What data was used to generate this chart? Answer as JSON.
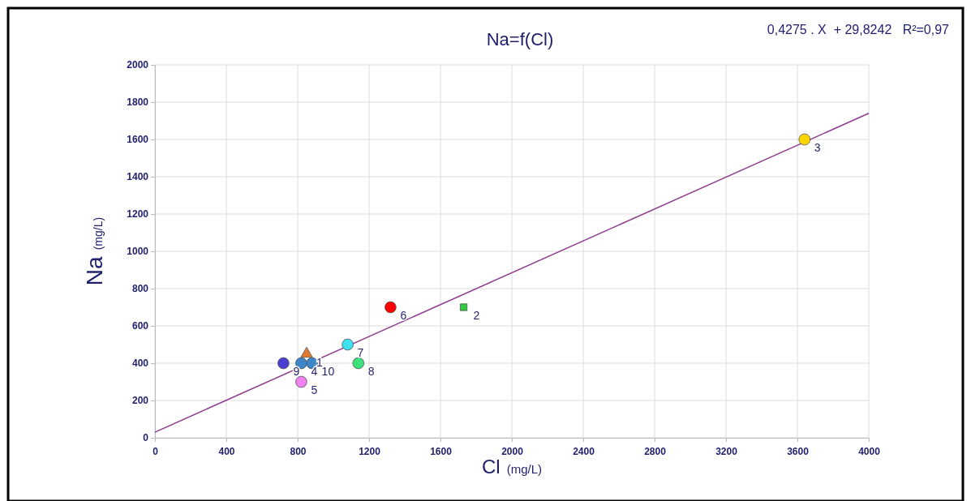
{
  "chart_data": {
    "type": "scatter",
    "title": "Na=f(Cl)",
    "xlabel": "Cl (mg/L)",
    "ylabel": "Na (mg/L)",
    "annotations": [
      "0,4275 . X  + 29,8242   R²=0,97",
      {
        "text": "1",
        "x": 850,
        "y": 450
      },
      {
        "text": "2",
        "x": 1730,
        "y": 700
      },
      {
        "text": "3",
        "x": 3640,
        "y": 1600
      },
      {
        "text": "4",
        "x": 820,
        "y": 400
      },
      {
        "text": "5",
        "x": 820,
        "y": 300
      },
      {
        "text": "6",
        "x": 1320,
        "y": 700
      },
      {
        "text": "7",
        "x": 1080,
        "y": 500
      },
      {
        "text": "8",
        "x": 1140,
        "y": 400
      },
      {
        "text": "9",
        "x": 720,
        "y": 400
      },
      {
        "text": "10",
        "x": 880,
        "y": 400
      }
    ],
    "xlim": [
      0,
      4000
    ],
    "xticks": [
      0,
      400,
      800,
      1200,
      1600,
      2000,
      2400,
      2800,
      3200,
      3600,
      4000
    ],
    "ylim": [
      0,
      2000
    ],
    "yticks": [
      0,
      200,
      400,
      600,
      800,
      1000,
      1200,
      1400,
      1600,
      1800,
      2000
    ],
    "grid": true,
    "series": [
      {
        "type": "line",
        "x": [
          0,
          4000
        ],
        "values": [
          30,
          1740
        ],
        "color": "#8e3a8e",
        "marker": "none",
        "line_style": "solid"
      },
      {
        "marker": "circle",
        "x": [
          3640,
          820,
          820,
          1320,
          1080,
          1140,
          720,
          880
        ],
        "values": [
          1600,
          400,
          300,
          700,
          500,
          400,
          400,
          400
        ],
        "colors": [
          "#ffd700",
          "#3d85c6",
          "#ee82ee",
          "#ff0000",
          "#40e0f0",
          "#3ee07a",
          "#4b3dd0",
          "#3d85c6"
        ]
      },
      {
        "marker": "triangle",
        "x": [
          850
        ],
        "values": [
          450
        ],
        "colors": [
          "#e07a30"
        ]
      },
      {
        "marker": "square",
        "x": [
          1730
        ],
        "values": [
          700
        ],
        "colors": [
          "#2ecc40"
        ]
      }
    ]
  }
}
